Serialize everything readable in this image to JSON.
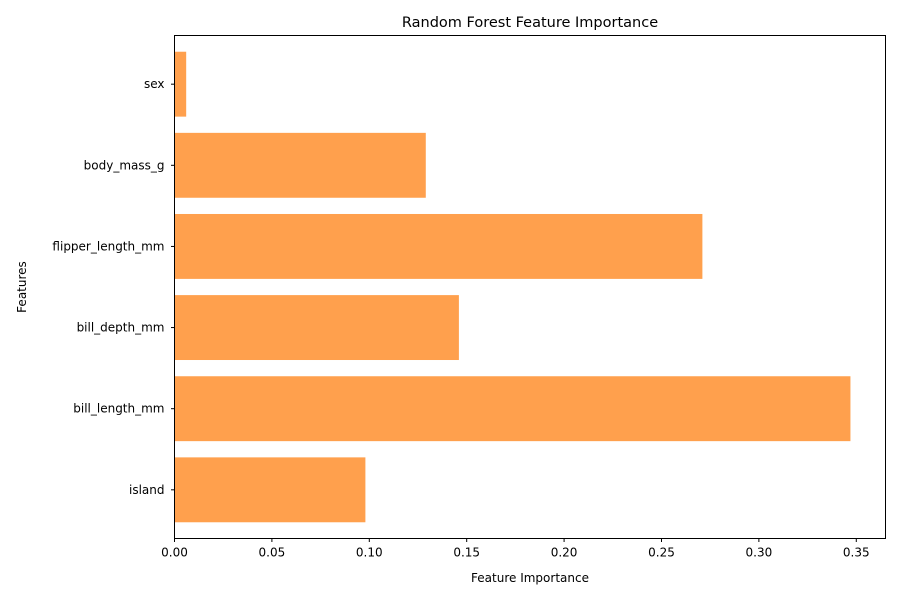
{
  "chart_data": {
    "type": "bar",
    "orientation": "horizontal",
    "title": "Random Forest Feature Importance",
    "xlabel": "Feature Importance",
    "ylabel": "Features",
    "categories": [
      "island",
      "bill_length_mm",
      "bill_depth_mm",
      "flipper_length_mm",
      "body_mass_g",
      "sex"
    ],
    "values": [
      0.098,
      0.347,
      0.146,
      0.271,
      0.129,
      0.006
    ],
    "xlim": [
      0,
      0.365
    ],
    "xticks": [
      0.0,
      0.05,
      0.1,
      0.15,
      0.2,
      0.25,
      0.3,
      0.35
    ],
    "xtick_labels": [
      "0.00",
      "0.05",
      "0.10",
      "0.15",
      "0.20",
      "0.25",
      "0.30",
      "0.35"
    ],
    "bar_color": "#ffa04d",
    "grid": false,
    "legend": "none"
  }
}
